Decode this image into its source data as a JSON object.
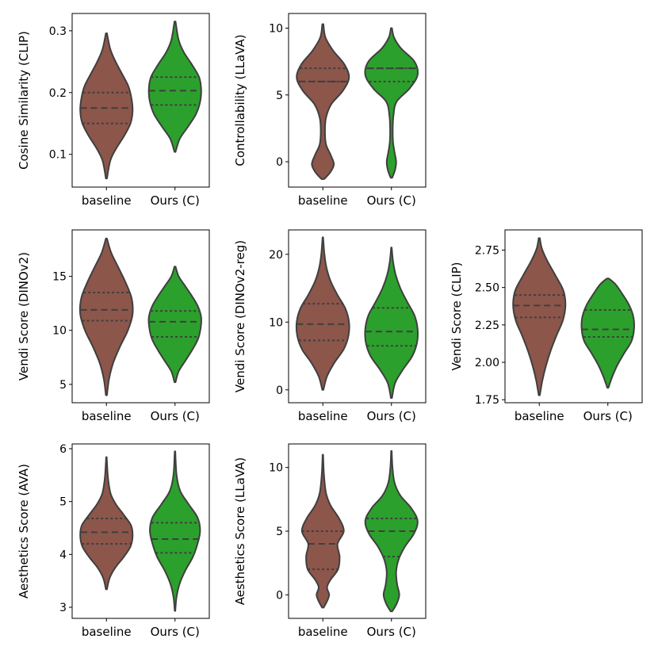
{
  "chart_data": [
    {
      "type": "violin",
      "ylabel": "Cosine Similarity (CLIP)",
      "categories": [
        "baseline",
        "Ours (C)"
      ],
      "ylim": [
        0.047,
        0.328
      ],
      "yticks": [
        0.1,
        0.2,
        0.3
      ],
      "yticklabels": [
        "0.1",
        "0.2",
        "0.3"
      ],
      "series": [
        {
          "category": "baseline",
          "color": "#8c564b",
          "min": 0.061,
          "max": 0.296,
          "q1": 0.15,
          "median": 0.175,
          "q3": 0.2,
          "density": [
            [
              0.061,
              0.02
            ],
            [
              0.09,
              0.15
            ],
            [
              0.11,
              0.38
            ],
            [
              0.13,
              0.68
            ],
            [
              0.15,
              0.92
            ],
            [
              0.17,
              1.0
            ],
            [
              0.19,
              0.96
            ],
            [
              0.21,
              0.84
            ],
            [
              0.23,
              0.6
            ],
            [
              0.25,
              0.35
            ],
            [
              0.27,
              0.15
            ],
            [
              0.296,
              0.02
            ]
          ]
        },
        {
          "category": "Ours (C)",
          "color": "#2ca02c",
          "min": 0.104,
          "max": 0.315,
          "q1": 0.18,
          "median": 0.203,
          "q3": 0.225,
          "density": [
            [
              0.104,
              0.02
            ],
            [
              0.125,
              0.18
            ],
            [
              0.145,
              0.5
            ],
            [
              0.165,
              0.8
            ],
            [
              0.185,
              0.96
            ],
            [
              0.205,
              1.0
            ],
            [
              0.225,
              0.92
            ],
            [
              0.245,
              0.65
            ],
            [
              0.265,
              0.34
            ],
            [
              0.285,
              0.14
            ],
            [
              0.315,
              0.02
            ]
          ]
        }
      ]
    },
    {
      "type": "violin",
      "ylabel": "Controllability (LLaVA)",
      "categories": [
        "baseline",
        "Ours (C)"
      ],
      "ylim": [
        -1.9,
        11.1
      ],
      "yticks": [
        0,
        5,
        10
      ],
      "yticklabels": [
        "0",
        "5",
        "10"
      ],
      "series": [
        {
          "category": "baseline",
          "color": "#8c564b",
          "min": -1.3,
          "max": 10.3,
          "q1": 6.0,
          "median": 6.0,
          "q3": 7.0,
          "density": [
            [
              -1.3,
              0.05
            ],
            [
              -0.8,
              0.28
            ],
            [
              -0.2,
              0.42
            ],
            [
              0.5,
              0.3
            ],
            [
              1.3,
              0.12
            ],
            [
              2.3,
              0.08
            ],
            [
              3.3,
              0.12
            ],
            [
              4.3,
              0.32
            ],
            [
              5.3,
              0.76
            ],
            [
              6.3,
              1.0
            ],
            [
              7.3,
              0.82
            ],
            [
              8.3,
              0.4
            ],
            [
              9.3,
              0.1
            ],
            [
              10.3,
              0.02
            ]
          ]
        },
        {
          "category": "Ours (C)",
          "color": "#2ca02c",
          "min": -1.2,
          "max": 10.0,
          "q1": 6.0,
          "median": 7.0,
          "q3": 7.0,
          "density": [
            [
              -1.2,
              0.03
            ],
            [
              -0.6,
              0.14
            ],
            [
              0.0,
              0.18
            ],
            [
              0.7,
              0.12
            ],
            [
              1.5,
              0.06
            ],
            [
              2.5,
              0.05
            ],
            [
              3.5,
              0.08
            ],
            [
              4.5,
              0.2
            ],
            [
              5.5,
              0.7
            ],
            [
              6.5,
              1.0
            ],
            [
              7.5,
              0.88
            ],
            [
              8.5,
              0.36
            ],
            [
              9.3,
              0.1
            ],
            [
              10.0,
              0.02
            ]
          ]
        }
      ]
    },
    null,
    {
      "type": "violin",
      "ylabel": "Vendi Score (DINOv2)",
      "categories": [
        "baseline",
        "Ours (C)"
      ],
      "ylim": [
        3.3,
        19.3
      ],
      "yticks": [
        5,
        10,
        15
      ],
      "yticklabels": [
        "5",
        "10",
        "15"
      ],
      "series": [
        {
          "category": "baseline",
          "color": "#8c564b",
          "min": 4.0,
          "max": 18.5,
          "q1": 10.9,
          "median": 11.9,
          "q3": 13.5,
          "density": [
            [
              4.0,
              0.02
            ],
            [
              5.5,
              0.1
            ],
            [
              7.0,
              0.26
            ],
            [
              8.5,
              0.52
            ],
            [
              10.0,
              0.82
            ],
            [
              11.5,
              1.0
            ],
            [
              13.0,
              0.96
            ],
            [
              14.5,
              0.72
            ],
            [
              16.0,
              0.42
            ],
            [
              17.2,
              0.18
            ],
            [
              18.5,
              0.02
            ]
          ]
        },
        {
          "category": "Ours (C)",
          "color": "#2ca02c",
          "min": 5.2,
          "max": 15.9,
          "q1": 9.4,
          "median": 10.8,
          "q3": 11.8,
          "density": [
            [
              5.2,
              0.02
            ],
            [
              6.2,
              0.14
            ],
            [
              7.2,
              0.4
            ],
            [
              8.2,
              0.66
            ],
            [
              9.2,
              0.88
            ],
            [
              10.2,
              0.98
            ],
            [
              11.2,
              1.0
            ],
            [
              12.2,
              0.88
            ],
            [
              13.2,
              0.64
            ],
            [
              14.2,
              0.36
            ],
            [
              15.0,
              0.14
            ],
            [
              15.9,
              0.02
            ]
          ]
        }
      ]
    },
    {
      "type": "violin",
      "ylabel": "Vendi Score (DINOv2-reg)",
      "categories": [
        "baseline",
        "Ours (C)"
      ],
      "ylim": [
        -1.9,
        23.6
      ],
      "yticks": [
        0,
        10,
        20
      ],
      "yticklabels": [
        "0",
        "10",
        "20"
      ],
      "series": [
        {
          "category": "baseline",
          "color": "#8c564b",
          "min": 0.0,
          "max": 22.5,
          "q1": 7.3,
          "median": 9.7,
          "q3": 12.7,
          "density": [
            [
              0.0,
              0.02
            ],
            [
              2.0,
              0.16
            ],
            [
              4.0,
              0.44
            ],
            [
              6.0,
              0.8
            ],
            [
              8.0,
              0.98
            ],
            [
              10.0,
              1.0
            ],
            [
              12.0,
              0.86
            ],
            [
              14.0,
              0.56
            ],
            [
              16.0,
              0.3
            ],
            [
              18.0,
              0.14
            ],
            [
              20.0,
              0.06
            ],
            [
              22.5,
              0.01
            ]
          ]
        },
        {
          "category": "Ours (C)",
          "color": "#2ca02c",
          "min": -1.2,
          "max": 21.0,
          "q1": 6.5,
          "median": 8.6,
          "q3": 12.1,
          "density": [
            [
              -1.2,
              0.02
            ],
            [
              1.0,
              0.14
            ],
            [
              3.0,
              0.44
            ],
            [
              5.0,
              0.8
            ],
            [
              7.0,
              0.98
            ],
            [
              9.0,
              1.0
            ],
            [
              11.0,
              0.88
            ],
            [
              13.0,
              0.6
            ],
            [
              15.0,
              0.34
            ],
            [
              17.0,
              0.16
            ],
            [
              19.0,
              0.06
            ],
            [
              21.0,
              0.01
            ]
          ]
        }
      ]
    },
    {
      "type": "violin",
      "ylabel": "Vendi Score (CLIP)",
      "categories": [
        "baseline",
        "Ours (C)"
      ],
      "ylim": [
        1.73,
        2.885
      ],
      "yticks": [
        1.75,
        2.0,
        2.25,
        2.5,
        2.75
      ],
      "yticklabels": [
        "1.75",
        "2.00",
        "2.25",
        "2.50",
        "2.75"
      ],
      "series": [
        {
          "category": "baseline",
          "color": "#8c564b",
          "min": 1.78,
          "max": 2.83,
          "q1": 2.3,
          "median": 2.38,
          "q3": 2.45,
          "density": [
            [
              1.78,
              0.02
            ],
            [
              1.88,
              0.12
            ],
            [
              1.98,
              0.26
            ],
            [
              2.08,
              0.44
            ],
            [
              2.18,
              0.66
            ],
            [
              2.28,
              0.9
            ],
            [
              2.38,
              1.0
            ],
            [
              2.48,
              0.92
            ],
            [
              2.58,
              0.62
            ],
            [
              2.68,
              0.3
            ],
            [
              2.76,
              0.1
            ],
            [
              2.83,
              0.02
            ]
          ]
        },
        {
          "category": "Ours (C)",
          "color": "#2ca02c",
          "min": 1.83,
          "max": 2.56,
          "q1": 2.17,
          "median": 2.22,
          "q3": 2.35,
          "density": [
            [
              1.83,
              0.02
            ],
            [
              1.9,
              0.16
            ],
            [
              1.98,
              0.36
            ],
            [
              2.06,
              0.62
            ],
            [
              2.14,
              0.9
            ],
            [
              2.22,
              1.0
            ],
            [
              2.3,
              0.98
            ],
            [
              2.38,
              0.82
            ],
            [
              2.46,
              0.54
            ],
            [
              2.52,
              0.3
            ],
            [
              2.56,
              0.04
            ]
          ]
        }
      ]
    },
    {
      "type": "violin",
      "ylabel": "Aesthetics Score (AVA)",
      "categories": [
        "baseline",
        "Ours (C)"
      ],
      "ylim": [
        2.79,
        6.09
      ],
      "yticks": [
        3,
        4,
        5,
        6
      ],
      "yticklabels": [
        "3",
        "4",
        "5",
        "6"
      ],
      "series": [
        {
          "category": "baseline",
          "color": "#8c564b",
          "min": 3.34,
          "max": 5.84,
          "q1": 4.2,
          "median": 4.42,
          "q3": 4.68,
          "density": [
            [
              3.34,
              0.02
            ],
            [
              3.55,
              0.12
            ],
            [
              3.75,
              0.34
            ],
            [
              3.95,
              0.66
            ],
            [
              4.15,
              0.92
            ],
            [
              4.35,
              1.0
            ],
            [
              4.55,
              0.94
            ],
            [
              4.75,
              0.66
            ],
            [
              4.95,
              0.36
            ],
            [
              5.15,
              0.16
            ],
            [
              5.45,
              0.06
            ],
            [
              5.84,
              0.01
            ]
          ]
        },
        {
          "category": "Ours (C)",
          "color": "#2ca02c",
          "min": 2.93,
          "max": 5.95,
          "q1": 4.03,
          "median": 4.29,
          "q3": 4.6,
          "density": [
            [
              2.93,
              0.01
            ],
            [
              3.2,
              0.06
            ],
            [
              3.45,
              0.18
            ],
            [
              3.7,
              0.4
            ],
            [
              3.95,
              0.68
            ],
            [
              4.2,
              0.86
            ],
            [
              4.45,
              0.96
            ],
            [
              4.7,
              0.86
            ],
            [
              4.95,
              0.52
            ],
            [
              5.2,
              0.2
            ],
            [
              5.5,
              0.06
            ],
            [
              5.95,
              0.01
            ]
          ]
        }
      ]
    },
    {
      "type": "violin",
      "ylabel": "Aesthetics Score (LLaVA)",
      "categories": [
        "baseline",
        "Ours (C)"
      ],
      "ylim": [
        -1.85,
        11.85
      ],
      "yticks": [
        0,
        5,
        10
      ],
      "yticklabels": [
        "0",
        "5",
        "10"
      ],
      "series": [
        {
          "category": "baseline",
          "color": "#8c564b",
          "min": -1.0,
          "max": 11.0,
          "q1": 2.0,
          "median": 4.0,
          "q3": 5.0,
          "density": [
            [
              -1.0,
              0.03
            ],
            [
              -0.5,
              0.16
            ],
            [
              0.0,
              0.24
            ],
            [
              0.6,
              0.16
            ],
            [
              1.2,
              0.3
            ],
            [
              2.0,
              0.58
            ],
            [
              3.0,
              0.64
            ],
            [
              4.0,
              0.56
            ],
            [
              5.0,
              0.8
            ],
            [
              6.0,
              0.62
            ],
            [
              7.0,
              0.3
            ],
            [
              8.0,
              0.12
            ],
            [
              9.5,
              0.04
            ],
            [
              11.0,
              0.01
            ]
          ]
        },
        {
          "category": "Ours (C)",
          "color": "#2ca02c",
          "min": -1.3,
          "max": 11.3,
          "q1": 3.0,
          "median": 5.0,
          "q3": 6.0,
          "density": [
            [
              -1.3,
              0.03
            ],
            [
              -0.7,
              0.2
            ],
            [
              0.0,
              0.3
            ],
            [
              0.8,
              0.22
            ],
            [
              1.8,
              0.18
            ],
            [
              2.8,
              0.28
            ],
            [
              3.8,
              0.52
            ],
            [
              4.8,
              0.86
            ],
            [
              5.8,
              1.0
            ],
            [
              6.8,
              0.76
            ],
            [
              7.8,
              0.34
            ],
            [
              8.8,
              0.12
            ],
            [
              10.0,
              0.04
            ],
            [
              11.3,
              0.01
            ]
          ]
        }
      ]
    }
  ]
}
